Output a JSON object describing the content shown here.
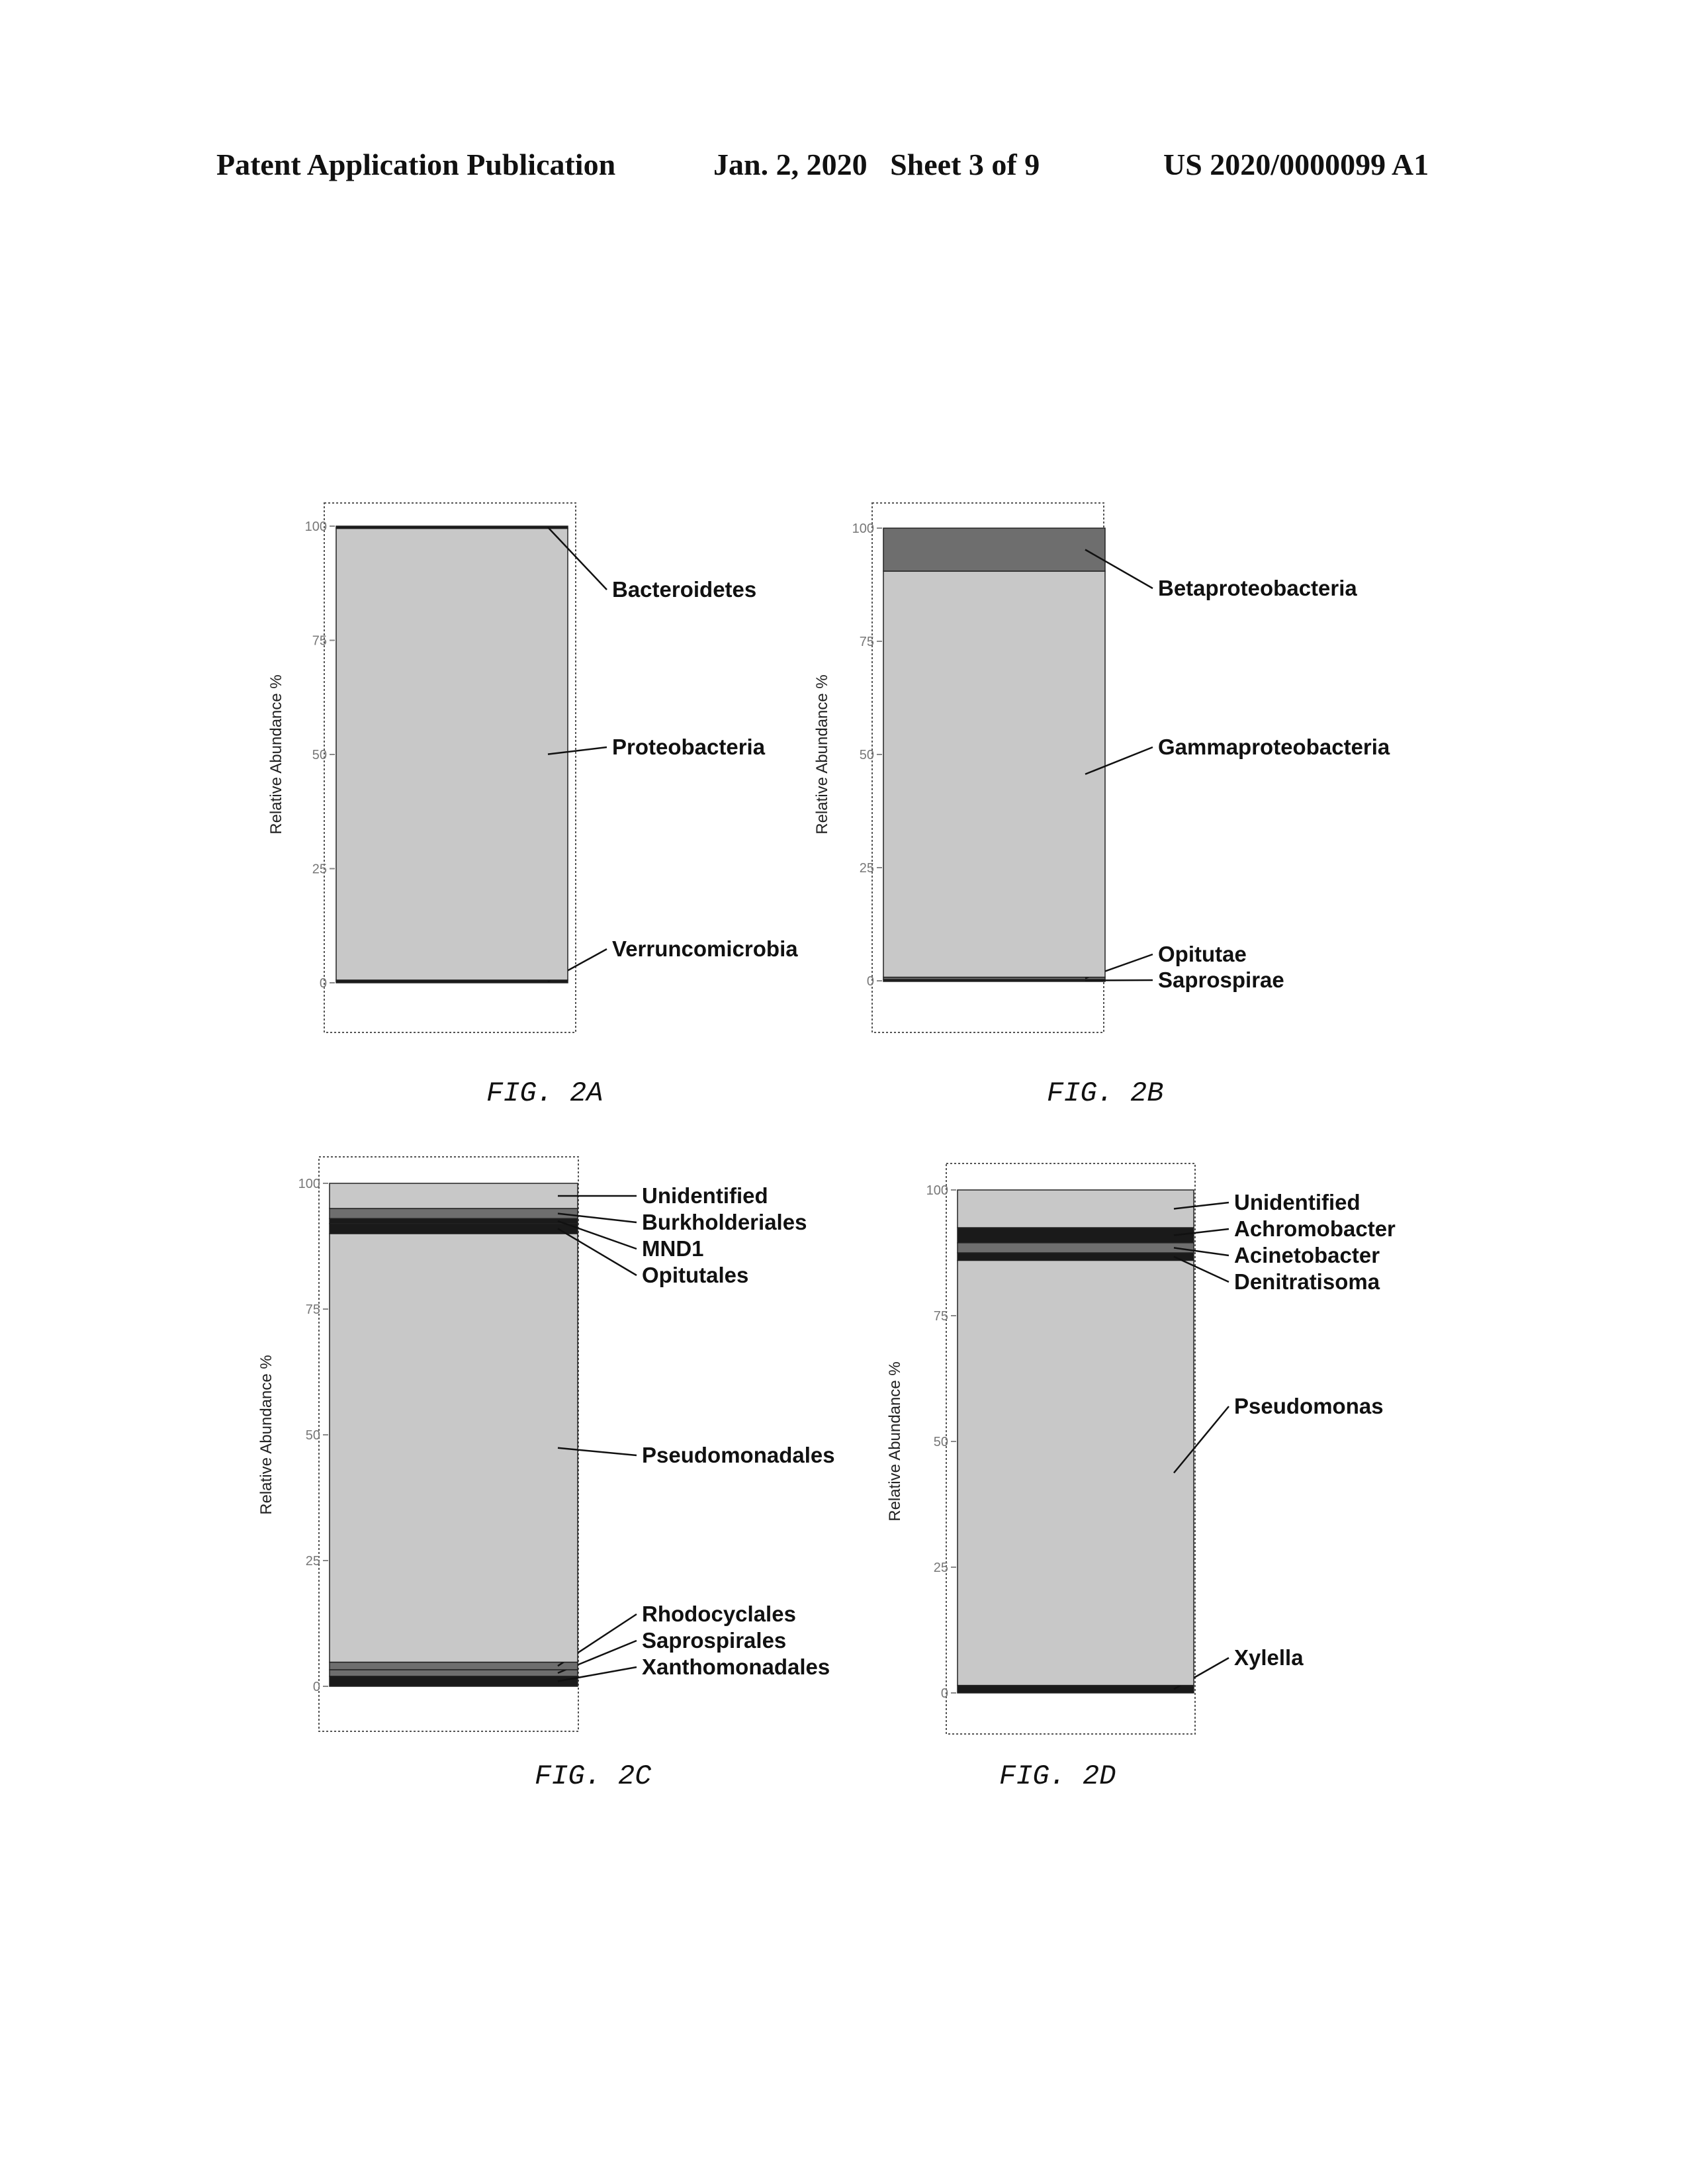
{
  "header": {
    "publication": "Patent Application Publication",
    "date_sheet": "Jan. 2, 2020   Sheet 3 of 9",
    "number": "US 2020/0000099 A1"
  },
  "colors": {
    "dark": "#1a1a1a",
    "medium": "#6e6e6e",
    "light": "#c8c8c8",
    "background": "#ffffff"
  },
  "chart_data": [
    {
      "type": "bar",
      "stacked": true,
      "caption": "FIG. 2A",
      "ylabel": "Relative Abundance %",
      "ylim": [
        0,
        100
      ],
      "yticks": [
        "0",
        "25",
        "50",
        "75",
        "100"
      ],
      "series": [
        {
          "name": "Verruncomicrobia",
          "value": 0.6
        },
        {
          "name": "Proteobacteria",
          "value": 98.9
        },
        {
          "name": "Bacteroidetes",
          "value": 0.5
        }
      ]
    },
    {
      "type": "bar",
      "stacked": true,
      "caption": "FIG. 2B",
      "ylabel": "Relative Abundance %",
      "ylim": [
        0,
        100
      ],
      "yticks": [
        "0",
        "25",
        "50",
        "75",
        "100"
      ],
      "series": [
        {
          "name": "Saprospirae",
          "value": 0.3
        },
        {
          "name": "Opitutae",
          "value": 0.5
        },
        {
          "name": "Gammaproteobacteria",
          "value": 89.7
        },
        {
          "name": "Betaproteobacteria",
          "value": 9.5
        }
      ]
    },
    {
      "type": "bar",
      "stacked": true,
      "caption": "FIG. 2C",
      "ylabel": "Relative Abundance %",
      "ylim": [
        0,
        100
      ],
      "yticks": [
        "0",
        "25",
        "50",
        "75",
        "100"
      ],
      "series": [
        {
          "name": "Xanthomonadales",
          "value": 2.0
        },
        {
          "name": "Saprospirales",
          "value": 1.3
        },
        {
          "name": "Rhodocyclales",
          "value": 1.5
        },
        {
          "name": "Pseudomonadales",
          "value": 85.2
        },
        {
          "name": "Opitutales",
          "value": 2.0
        },
        {
          "name": "MND1",
          "value": 1.0
        },
        {
          "name": "Burkholderiales",
          "value": 2.0
        },
        {
          "name": "Unidentified",
          "value": 5.0
        }
      ]
    },
    {
      "type": "bar",
      "stacked": true,
      "caption": "FIG. 2D",
      "ylabel": "Relative Abundance %",
      "ylim": [
        0,
        100
      ],
      "yticks": [
        "0",
        "25",
        "50",
        "75",
        "100"
      ],
      "series": [
        {
          "name": "Xylella",
          "value": 1.5
        },
        {
          "name": "Pseudomonas",
          "value": 84.5
        },
        {
          "name": "Denitratisoma",
          "value": 1.5
        },
        {
          "name": "Acinetobacter",
          "value": 2.0
        },
        {
          "name": "Achromobacter",
          "value": 3.0
        },
        {
          "name": "Unidentified",
          "value": 7.5
        }
      ]
    }
  ]
}
